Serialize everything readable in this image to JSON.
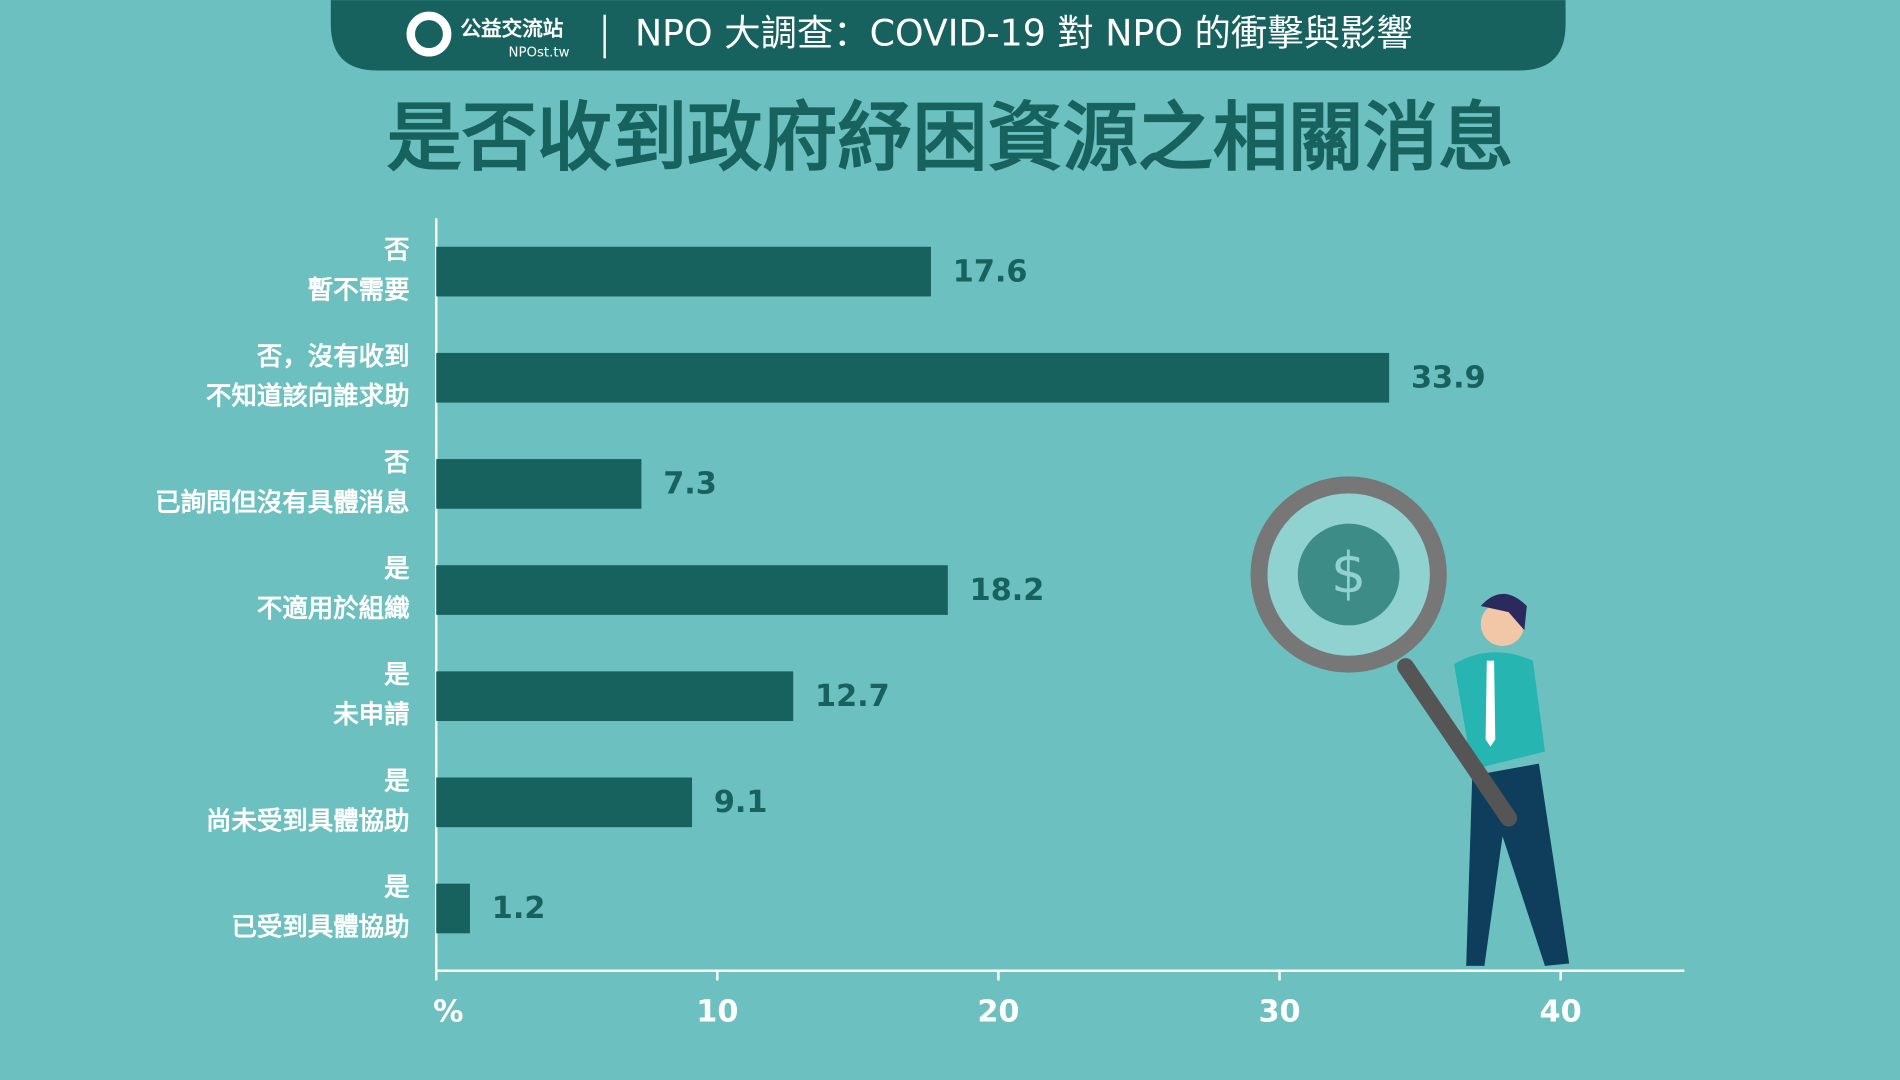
{
  "header": {
    "logo": "公益交流站",
    "logo_url": "NPOst.tw",
    "title": "NPO 大調查：COVID-19 對 NPO 的衝擊與影響"
  },
  "chart_data": {
    "type": "hbar",
    "title": "是否收到政府紓困資源之相關消息",
    "categories": [
      [
        "否",
        "暫不需要"
      ],
      [
        "否，沒有收到",
        "不知道該向誰求助"
      ],
      [
        "否",
        "已詢問但沒有具體消息"
      ],
      [
        "是",
        "不適用於組織"
      ],
      [
        "是",
        "未申請"
      ],
      [
        "是",
        "尚未受到具體協助"
      ],
      [
        "是",
        "已受到具體協助"
      ]
    ],
    "values": [
      17.6,
      33.9,
      7.3,
      18.2,
      12.7,
      9.1,
      1.2
    ],
    "color": "#17625f",
    "xlim": [
      0,
      44.4
    ],
    "xticks": [
      {
        "value": 0,
        "label": "%"
      },
      10,
      20,
      30,
      40
    ]
  }
}
